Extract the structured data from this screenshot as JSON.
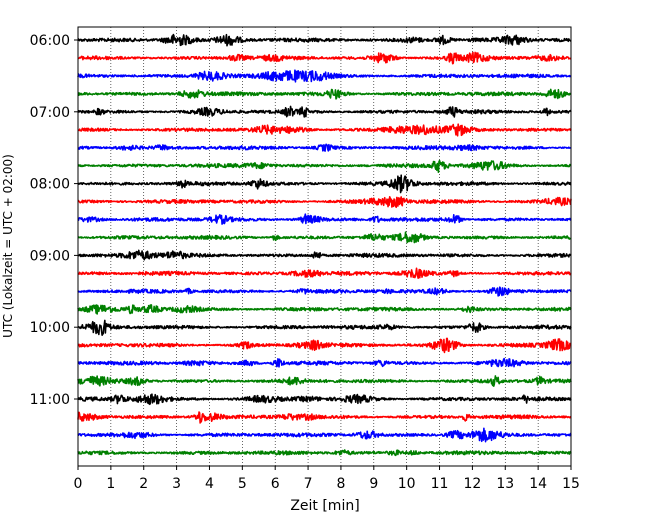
{
  "chart_data": {
    "type": "line",
    "chart_kind": "seismic helicorder",
    "title": "",
    "xlabel": "Zeit  [min]",
    "ylabel": "UTC (Lokalzeit = UTC + 02:00)",
    "xlim": [
      0,
      15
    ],
    "x_ticks": [
      0,
      1,
      2,
      3,
      4,
      5,
      6,
      7,
      8,
      9,
      10,
      11,
      12,
      13,
      14,
      15
    ],
    "x_tick_labels": [
      "0",
      "1",
      "2",
      "3",
      "4",
      "5",
      "6",
      "7",
      "8",
      "9",
      "10",
      "11",
      "12",
      "13",
      "14",
      "15"
    ],
    "y_tick_labels": [
      "06:00",
      "07:00",
      "08:00",
      "09:00",
      "10:00",
      "11:00"
    ],
    "grid": {
      "x_dotted": true
    },
    "trace_colors": [
      "#000000",
      "#ff0000",
      "#0000ff",
      "#008000"
    ],
    "traces": [
      "06:00",
      "06:15",
      "06:30",
      "06:45",
      "07:00",
      "07:15",
      "07:30",
      "07:45",
      "08:00",
      "08:15",
      "08:30",
      "08:45",
      "09:00",
      "09:15",
      "09:30",
      "09:45",
      "10:00",
      "10:15",
      "10:30",
      "10:45",
      "11:00",
      "11:15",
      "11:30",
      "11:45"
    ]
  }
}
